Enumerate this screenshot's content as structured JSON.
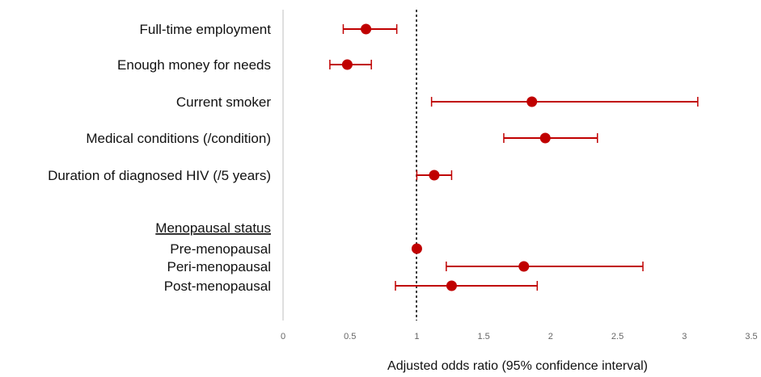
{
  "chart_data": {
    "type": "scatter",
    "title": "",
    "xlabel": "Adjusted odds ratio (95% confidence interval)",
    "ylabel": "",
    "xlim": [
      0,
      3.5
    ],
    "x_ticks": [
      "0",
      "0.5",
      "1",
      "1.5",
      "2",
      "2.5",
      "3",
      "3.5"
    ],
    "reference_line": 1,
    "marker_color": "#c00000",
    "rows": [
      {
        "label": "Full-time employment",
        "or": 0.62,
        "lo": 0.45,
        "hi": 0.85
      },
      {
        "label": "Enough money for needs",
        "or": 0.48,
        "lo": 0.35,
        "hi": 0.66
      },
      {
        "label": "Current smoker",
        "or": 1.86,
        "lo": 1.11,
        "hi": 3.1
      },
      {
        "label": "Medical conditions (/condition)",
        "or": 1.96,
        "lo": 1.65,
        "hi": 2.35
      },
      {
        "label": "Duration of diagnosed HIV (/5 years)",
        "or": 1.13,
        "lo": 1.0,
        "hi": 1.26
      }
    ],
    "group_heading": "Menopausal status",
    "group_rows": [
      {
        "label": "Pre-menopausal",
        "or": 1.0,
        "lo": null,
        "hi": null
      },
      {
        "label": "Peri-menopausal",
        "or": 1.8,
        "lo": 1.22,
        "hi": 2.69
      },
      {
        "label": "Post-menopausal",
        "or": 1.26,
        "lo": 0.84,
        "hi": 1.9
      }
    ]
  }
}
